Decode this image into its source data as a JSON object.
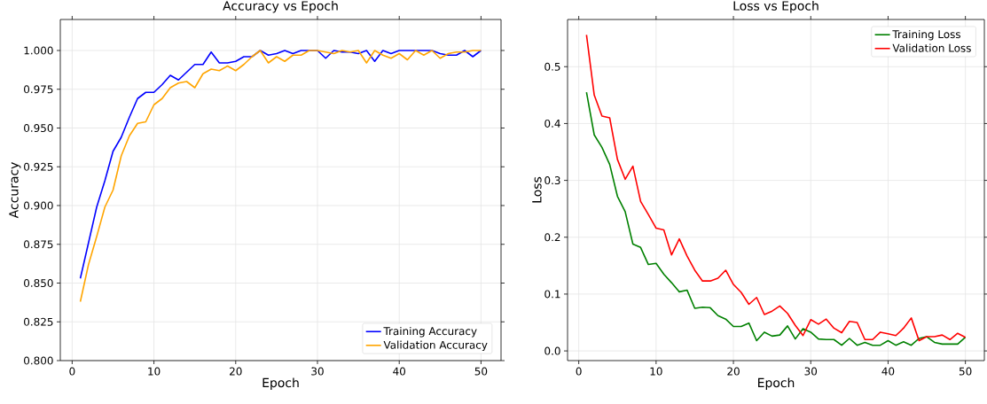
{
  "chart_data": [
    {
      "type": "line",
      "title": "Accuracy vs Epoch",
      "xlabel": "Epoch",
      "ylabel": "Accuracy",
      "x": [
        1,
        2,
        3,
        4,
        5,
        6,
        7,
        8,
        9,
        10,
        11,
        12,
        13,
        14,
        15,
        16,
        17,
        18,
        19,
        20,
        21,
        22,
        23,
        24,
        25,
        26,
        27,
        28,
        29,
        30,
        31,
        32,
        33,
        34,
        35,
        36,
        37,
        38,
        39,
        40,
        41,
        42,
        43,
        44,
        45,
        46,
        47,
        48,
        49,
        50
      ],
      "series": [
        {
          "name": "Training Accuracy",
          "color": "#0000ff",
          "values": [
            0.853,
            0.876,
            0.899,
            0.916,
            0.935,
            0.944,
            0.957,
            0.969,
            0.973,
            0.973,
            0.978,
            0.984,
            0.981,
            0.986,
            0.991,
            0.991,
            0.999,
            0.992,
            0.992,
            0.993,
            0.996,
            0.996,
            1.0,
            0.997,
            0.998,
            1.0,
            0.998,
            1.0,
            1.0,
            1.0,
            0.995,
            1.0,
            0.999,
            0.999,
            0.998,
            1.0,
            0.993,
            1.0,
            0.998,
            1.0,
            1.0,
            1.0,
            1.0,
            1.0,
            0.998,
            0.997,
            0.997,
            1.0,
            0.996,
            1.0
          ]
        },
        {
          "name": "Validation Accuracy",
          "color": "#ffa500",
          "values": [
            0.838,
            0.862,
            0.88,
            0.899,
            0.91,
            0.932,
            0.945,
            0.953,
            0.954,
            0.965,
            0.969,
            0.976,
            0.979,
            0.98,
            0.976,
            0.985,
            0.988,
            0.987,
            0.99,
            0.987,
            0.991,
            0.996,
            1.0,
            0.992,
            0.996,
            0.993,
            0.997,
            0.997,
            1.0,
            1.0,
            0.999,
            0.998,
            1.0,
            0.999,
            1.0,
            0.992,
            1.0,
            0.997,
            0.995,
            0.998,
            0.994,
            1.0,
            0.997,
            1.0,
            0.995,
            0.998,
            0.999,
            0.999,
            1.0,
            1.0
          ]
        }
      ],
      "xlim": [
        -1.45,
        52.45
      ],
      "ylim": [
        0.8,
        1.02
      ],
      "xticks": [
        0,
        10,
        20,
        30,
        40,
        50
      ],
      "yticks": [
        {
          "value": 0.8,
          "label": "0.800"
        },
        {
          "value": 0.825,
          "label": "0.825"
        },
        {
          "value": 0.85,
          "label": "0.850"
        },
        {
          "value": 0.875,
          "label": "0.875"
        },
        {
          "value": 0.9,
          "label": "0.900"
        },
        {
          "value": 0.925,
          "label": "0.925"
        },
        {
          "value": 0.95,
          "label": "0.950"
        },
        {
          "value": 0.975,
          "label": "0.975"
        },
        {
          "value": 1.0,
          "label": "1.000"
        }
      ],
      "grid": true,
      "legend": "bottom right"
    },
    {
      "type": "line",
      "title": "Loss vs Epoch",
      "xlabel": "Epoch",
      "ylabel": "Loss",
      "x": [
        1,
        2,
        3,
        4,
        5,
        6,
        7,
        8,
        9,
        10,
        11,
        12,
        13,
        14,
        15,
        16,
        17,
        18,
        19,
        20,
        21,
        22,
        23,
        24,
        25,
        26,
        27,
        28,
        29,
        30,
        31,
        32,
        33,
        34,
        35,
        36,
        37,
        38,
        39,
        40,
        41,
        42,
        43,
        44,
        45,
        46,
        47,
        48,
        49,
        50
      ],
      "series": [
        {
          "name": "Training Loss",
          "color": "#008000",
          "values": [
            0.455,
            0.38,
            0.358,
            0.328,
            0.272,
            0.245,
            0.188,
            0.182,
            0.152,
            0.154,
            0.135,
            0.12,
            0.104,
            0.107,
            0.075,
            0.077,
            0.076,
            0.062,
            0.056,
            0.043,
            0.043,
            0.049,
            0.018,
            0.033,
            0.026,
            0.028,
            0.044,
            0.021,
            0.039,
            0.033,
            0.021,
            0.02,
            0.02,
            0.01,
            0.022,
            0.01,
            0.015,
            0.01,
            0.01,
            0.018,
            0.01,
            0.016,
            0.01,
            0.022,
            0.025,
            0.015,
            0.012,
            0.012,
            0.012,
            0.024
          ]
        },
        {
          "name": "Validation Loss",
          "color": "#ff0000",
          "values": [
            0.556,
            0.45,
            0.413,
            0.41,
            0.337,
            0.302,
            0.325,
            0.263,
            0.24,
            0.216,
            0.213,
            0.169,
            0.197,
            0.167,
            0.142,
            0.123,
            0.123,
            0.128,
            0.142,
            0.117,
            0.103,
            0.082,
            0.094,
            0.064,
            0.07,
            0.079,
            0.066,
            0.045,
            0.027,
            0.055,
            0.047,
            0.056,
            0.04,
            0.032,
            0.052,
            0.05,
            0.02,
            0.02,
            0.033,
            0.03,
            0.027,
            0.04,
            0.058,
            0.018,
            0.025,
            0.025,
            0.028,
            0.02,
            0.031,
            0.024
          ]
        }
      ],
      "xlim": [
        -1.45,
        52.45
      ],
      "ylim": [
        -0.017,
        0.583
      ],
      "xticks": [
        0,
        10,
        20,
        30,
        40,
        50
      ],
      "yticks": [
        {
          "value": 0,
          "label": "0.0"
        },
        {
          "value": 0.1,
          "label": "0.1"
        },
        {
          "value": 0.2,
          "label": "0.2"
        },
        {
          "value": 0.3,
          "label": "0.3"
        },
        {
          "value": 0.4,
          "label": "0.4"
        },
        {
          "value": 0.5,
          "label": "0.5"
        }
      ],
      "grid": true,
      "legend": "top right"
    }
  ]
}
